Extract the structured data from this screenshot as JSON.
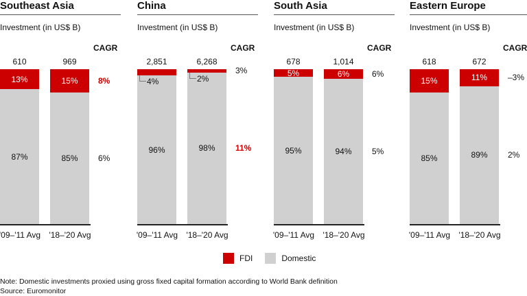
{
  "chart_data": {
    "type": "bar",
    "stacked": "percent",
    "subtitle": "Investment (in US$ B)",
    "cagr_header": "CAGR",
    "categories": [
      "'09–'11 Avg",
      "'18–'20 Avg"
    ],
    "legend": [
      {
        "name": "FDI",
        "color": "#cc0000"
      },
      {
        "name": "Domestic",
        "color": "#d0d0d0"
      }
    ],
    "legend_position": "bottom",
    "panels": [
      {
        "title": "Southeast Asia",
        "totals": [
          "610",
          "969"
        ],
        "fdi": [
          13,
          15
        ],
        "domestic": [
          87,
          85
        ],
        "fdi_cagr": "8%",
        "domestic_cagr": "6%",
        "highlight": "fdi"
      },
      {
        "title": "China",
        "totals": [
          "2,851",
          "6,268"
        ],
        "fdi": [
          4,
          2
        ],
        "domestic": [
          96,
          98
        ],
        "fdi_cagr": "3%",
        "domestic_cagr": "11%",
        "highlight": "domestic"
      },
      {
        "title": "South Asia",
        "totals": [
          "678",
          "1,014"
        ],
        "fdi": [
          5,
          6
        ],
        "domestic": [
          95,
          94
        ],
        "fdi_cagr": "6%",
        "domestic_cagr": "5%",
        "highlight": ""
      },
      {
        "title": "Eastern Europe",
        "totals": [
          "618",
          "672"
        ],
        "fdi": [
          15,
          11
        ],
        "domestic": [
          85,
          89
        ],
        "fdi_cagr": "–3%",
        "domestic_cagr": "2%",
        "highlight": ""
      }
    ]
  },
  "notes": {
    "note": "Note: Domestic investments proxied using gross fixed capital formation according to World Bank definition",
    "source": "Source: Euromonitor"
  }
}
